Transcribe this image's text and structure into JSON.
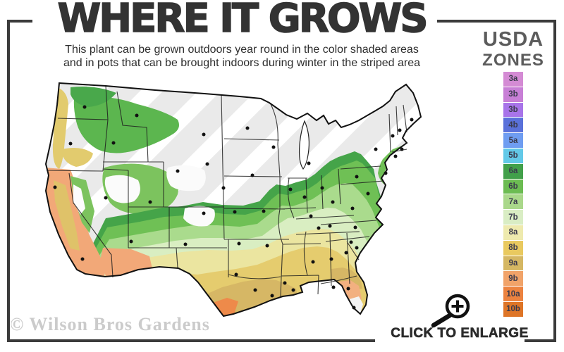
{
  "header": {
    "title": "WHERE IT GROWS",
    "subtitle_line1": "This plant can be grown outdoors year round in the color shaded areas",
    "subtitle_line2": "and in pots that can be brought indoors during winter in the striped area"
  },
  "legend": {
    "heading_line1": "USDA",
    "heading_line2": "ZONES",
    "zones": [
      {
        "label": "3a",
        "color": "#d48bd4"
      },
      {
        "label": "3b",
        "color": "#c87fd6"
      },
      {
        "label": "3b",
        "color": "#a874e9"
      },
      {
        "label": "4b",
        "color": "#5a71da"
      },
      {
        "label": "5a",
        "color": "#6f9df1"
      },
      {
        "label": "5b",
        "color": "#63c9e8"
      },
      {
        "label": "6a",
        "color": "#42a04a"
      },
      {
        "label": "6b",
        "color": "#6cbc52"
      },
      {
        "label": "7a",
        "color": "#aad88b"
      },
      {
        "label": "7b",
        "color": "#d9edc4"
      },
      {
        "label": "8a",
        "color": "#eeeaae"
      },
      {
        "label": "8b",
        "color": "#e9c95f"
      },
      {
        "label": "9a",
        "color": "#d5b763"
      },
      {
        "label": "9b",
        "color": "#f1a369"
      },
      {
        "label": "10a",
        "color": "#ec8340"
      },
      {
        "label": "10b",
        "color": "#de7527"
      }
    ]
  },
  "map": {
    "kind": "usa-hardiness-zone-map",
    "striped_region_color": "#eaeaea",
    "stripe_color": "#ffffff"
  },
  "footer": {
    "watermark": "© Wilson Bros Gardens",
    "enlarge_label": "CLICK TO ENLARGE",
    "magnifier_icon": "magnifying-glass-plus-icon"
  },
  "colors": {
    "frame": "#3b3b3b",
    "title": "#333333",
    "legend_heading": "#5c5c5c",
    "watermark": "#cbcbcb"
  }
}
